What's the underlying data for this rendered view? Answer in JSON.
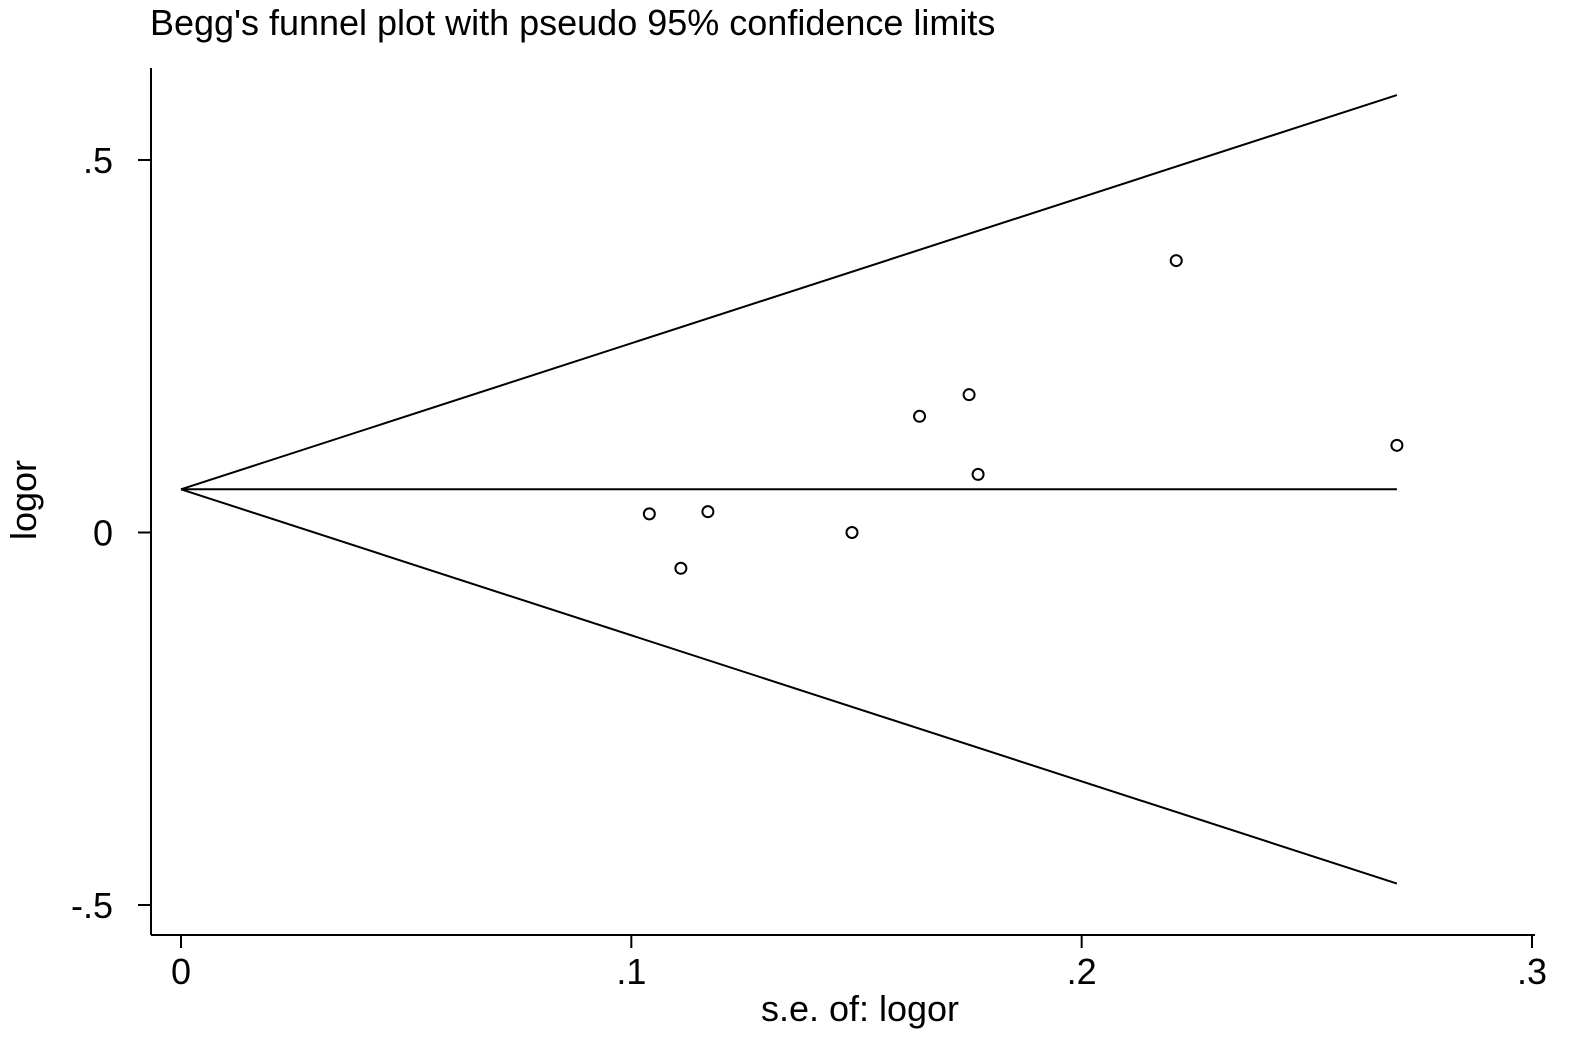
{
  "chart_data": {
    "type": "scatter",
    "title": "Begg's funnel plot with pseudo 95% confidence limits",
    "xlabel": "s.e. of: logor",
    "ylabel": "logor",
    "xlim": [
      0,
      0.3
    ],
    "ylim": [
      -0.5,
      0.5
    ],
    "x_ticks": [
      {
        "value": 0,
        "label": "0"
      },
      {
        "value": 0.1,
        "label": ".1"
      },
      {
        "value": 0.2,
        "label": ".2"
      },
      {
        "value": 0.3,
        "label": ".3"
      }
    ],
    "y_ticks": [
      {
        "value": -0.5,
        "label": "-.5"
      },
      {
        "value": 0,
        "label": "0"
      },
      {
        "value": 0.5,
        "label": ".5"
      }
    ],
    "pooled_estimate": 0.058,
    "funnel_max_se": 0.27,
    "points": [
      {
        "x": 0.104,
        "y": 0.025
      },
      {
        "x": 0.111,
        "y": -0.048
      },
      {
        "x": 0.117,
        "y": 0.028
      },
      {
        "x": 0.149,
        "y": 0.0
      },
      {
        "x": 0.164,
        "y": 0.156
      },
      {
        "x": 0.175,
        "y": 0.185
      },
      {
        "x": 0.177,
        "y": 0.078
      },
      {
        "x": 0.221,
        "y": 0.365
      },
      {
        "x": 0.27,
        "y": 0.117
      }
    ],
    "grid": false,
    "legend": "none"
  }
}
